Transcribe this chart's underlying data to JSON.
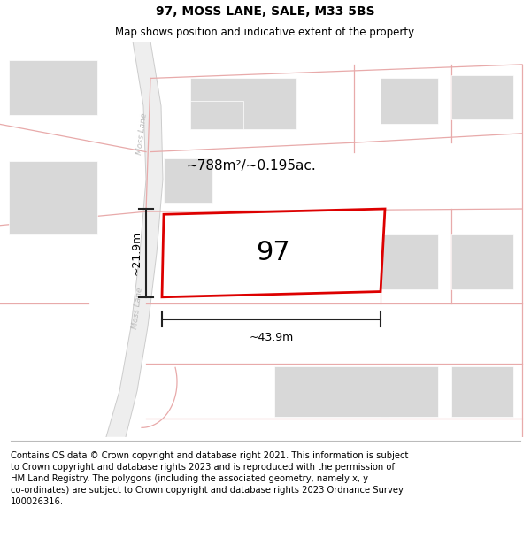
{
  "title": "97, MOSS LANE, SALE, M33 5BS",
  "subtitle": "Map shows position and indicative extent of the property.",
  "footer": "Contains OS data © Crown copyright and database right 2021. This information is subject\nto Crown copyright and database rights 2023 and is reproduced with the permission of\nHM Land Registry. The polygons (including the associated geometry, namely x, y\nco-ordinates) are subject to Crown copyright and database rights 2023 Ordnance Survey\n100026316.",
  "background_color": "#ffffff",
  "road_fill_color": "#efefef",
  "building_color": "#d8d8d8",
  "plot_line_color": "#dd0000",
  "road_line_color": "#e8aaaa",
  "measure_line_color": "#222222",
  "area_label": "~788m²/~0.195ac.",
  "width_label": "~43.9m",
  "height_label": "~21.9m",
  "property_number": "97",
  "road_name": "Moss Lane",
  "title_fontsize": 10,
  "subtitle_fontsize": 8.5,
  "footer_fontsize": 7.2
}
